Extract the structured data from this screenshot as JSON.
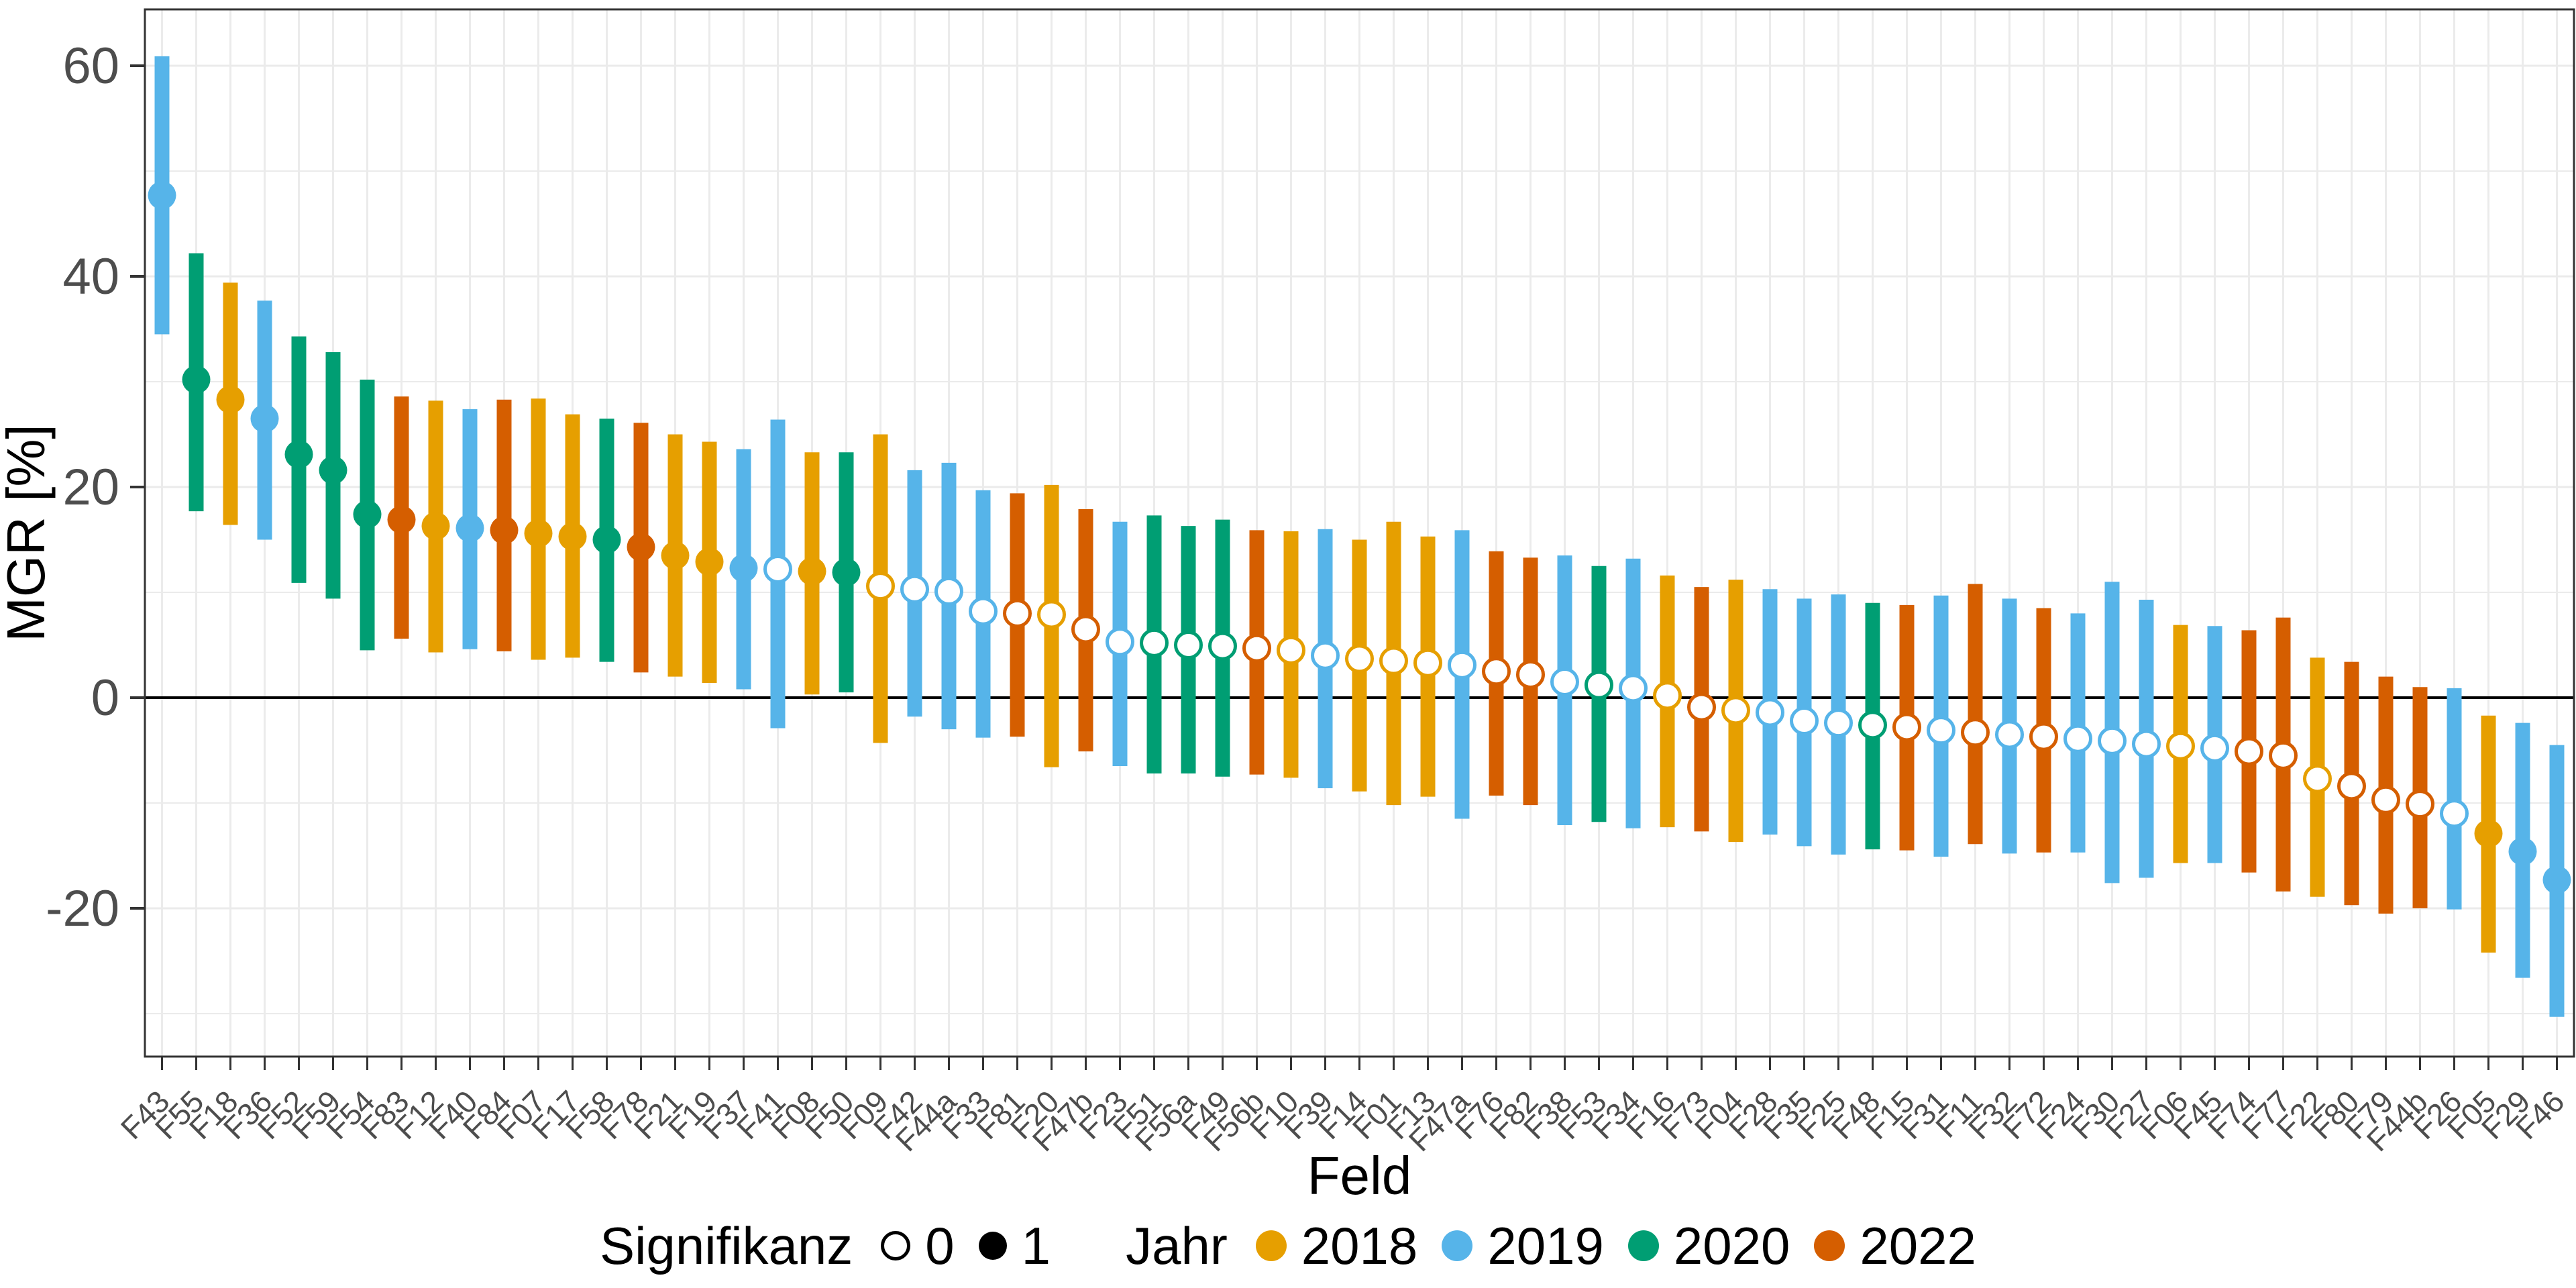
{
  "chart_data": {
    "type": "pointrange",
    "title": "",
    "xlabel": "Feld",
    "ylabel": "MGR [%]",
    "y_ticks": [
      60,
      40,
      20,
      0,
      -20
    ],
    "y_minor_gridlines": [
      50,
      30,
      10,
      -10,
      -30
    ],
    "ylim": [
      -34.1,
      65.4
    ],
    "zero_line": 0,
    "grid": "on",
    "legend_position": "bottom",
    "year_colors": {
      "2018": "#E69F00",
      "2019": "#56B4E9",
      "2020": "#009E73",
      "2022": "#D55E00"
    },
    "points": [
      {
        "feld": "F43",
        "jahr": "2019",
        "mgr": 47.7,
        "lo": 34.5,
        "hi": 60.9,
        "sig": 1
      },
      {
        "feld": "F55",
        "jahr": "2020",
        "mgr": 30.2,
        "lo": 17.7,
        "hi": 42.2,
        "sig": 1
      },
      {
        "feld": "F18",
        "jahr": "2018",
        "mgr": 28.3,
        "lo": 16.4,
        "hi": 39.4,
        "sig": 1
      },
      {
        "feld": "F36",
        "jahr": "2019",
        "mgr": 26.5,
        "lo": 15.0,
        "hi": 37.7,
        "sig": 1
      },
      {
        "feld": "F52",
        "jahr": "2020",
        "mgr": 23.1,
        "lo": 10.9,
        "hi": 34.3,
        "sig": 1
      },
      {
        "feld": "F59",
        "jahr": "2020",
        "mgr": 21.6,
        "lo": 9.4,
        "hi": 32.8,
        "sig": 1
      },
      {
        "feld": "F54",
        "jahr": "2020",
        "mgr": 17.4,
        "lo": 4.5,
        "hi": 30.2,
        "sig": 1
      },
      {
        "feld": "F83",
        "jahr": "2022",
        "mgr": 16.9,
        "lo": 5.6,
        "hi": 28.6,
        "sig": 1
      },
      {
        "feld": "F12",
        "jahr": "2018",
        "mgr": 16.3,
        "lo": 4.3,
        "hi": 28.2,
        "sig": 1
      },
      {
        "feld": "F40",
        "jahr": "2019",
        "mgr": 16.1,
        "lo": 4.6,
        "hi": 27.4,
        "sig": 1
      },
      {
        "feld": "F84",
        "jahr": "2022",
        "mgr": 15.9,
        "lo": 4.4,
        "hi": 28.3,
        "sig": 1
      },
      {
        "feld": "F07",
        "jahr": "2018",
        "mgr": 15.6,
        "lo": 3.6,
        "hi": 28.4,
        "sig": 1
      },
      {
        "feld": "F17",
        "jahr": "2018",
        "mgr": 15.3,
        "lo": 3.8,
        "hi": 26.9,
        "sig": 1
      },
      {
        "feld": "F58",
        "jahr": "2020",
        "mgr": 15.0,
        "lo": 3.4,
        "hi": 26.5,
        "sig": 1
      },
      {
        "feld": "F78",
        "jahr": "2022",
        "mgr": 14.3,
        "lo": 2.4,
        "hi": 26.1,
        "sig": 1
      },
      {
        "feld": "F21",
        "jahr": "2018",
        "mgr": 13.5,
        "lo": 2.0,
        "hi": 25.0,
        "sig": 1
      },
      {
        "feld": "F19",
        "jahr": "2018",
        "mgr": 12.9,
        "lo": 1.4,
        "hi": 24.3,
        "sig": 1
      },
      {
        "feld": "F37",
        "jahr": "2019",
        "mgr": 12.3,
        "lo": 0.8,
        "hi": 23.6,
        "sig": 1
      },
      {
        "feld": "F41",
        "jahr": "2019",
        "mgr": 12.2,
        "lo": -2.9,
        "hi": 26.4,
        "sig": 0
      },
      {
        "feld": "F08",
        "jahr": "2018",
        "mgr": 12.0,
        "lo": 0.3,
        "hi": 23.3,
        "sig": 1
      },
      {
        "feld": "F50",
        "jahr": "2020",
        "mgr": 11.9,
        "lo": 0.5,
        "hi": 23.3,
        "sig": 1
      },
      {
        "feld": "F09",
        "jahr": "2018",
        "mgr": 10.6,
        "lo": -4.3,
        "hi": 25.0,
        "sig": 0
      },
      {
        "feld": "F42",
        "jahr": "2019",
        "mgr": 10.3,
        "lo": -1.8,
        "hi": 21.6,
        "sig": 0
      },
      {
        "feld": "F44a",
        "jahr": "2019",
        "mgr": 10.1,
        "lo": -3.0,
        "hi": 22.3,
        "sig": 0
      },
      {
        "feld": "F33",
        "jahr": "2019",
        "mgr": 8.2,
        "lo": -3.8,
        "hi": 19.7,
        "sig": 0
      },
      {
        "feld": "F81",
        "jahr": "2022",
        "mgr": 8.0,
        "lo": -3.7,
        "hi": 19.4,
        "sig": 0
      },
      {
        "feld": "F20",
        "jahr": "2018",
        "mgr": 7.9,
        "lo": -6.6,
        "hi": 20.2,
        "sig": 0
      },
      {
        "feld": "F47b",
        "jahr": "2022",
        "mgr": 6.5,
        "lo": -5.1,
        "hi": 17.9,
        "sig": 0
      },
      {
        "feld": "F23",
        "jahr": "2019",
        "mgr": 5.3,
        "lo": -6.5,
        "hi": 16.7,
        "sig": 0
      },
      {
        "feld": "F51",
        "jahr": "2020",
        "mgr": 5.2,
        "lo": -7.2,
        "hi": 17.3,
        "sig": 0
      },
      {
        "feld": "F56a",
        "jahr": "2020",
        "mgr": 5.0,
        "lo": -7.2,
        "hi": 16.3,
        "sig": 0
      },
      {
        "feld": "F49",
        "jahr": "2020",
        "mgr": 4.9,
        "lo": -7.5,
        "hi": 16.9,
        "sig": 0
      },
      {
        "feld": "F56b",
        "jahr": "2022",
        "mgr": 4.7,
        "lo": -7.3,
        "hi": 15.9,
        "sig": 0
      },
      {
        "feld": "F10",
        "jahr": "2018",
        "mgr": 4.5,
        "lo": -7.6,
        "hi": 15.8,
        "sig": 0
      },
      {
        "feld": "F39",
        "jahr": "2019",
        "mgr": 4.0,
        "lo": -8.6,
        "hi": 16.0,
        "sig": 0
      },
      {
        "feld": "F14",
        "jahr": "2018",
        "mgr": 3.7,
        "lo": -8.9,
        "hi": 15.0,
        "sig": 0
      },
      {
        "feld": "F01",
        "jahr": "2018",
        "mgr": 3.5,
        "lo": -10.2,
        "hi": 16.7,
        "sig": 0
      },
      {
        "feld": "F13",
        "jahr": "2018",
        "mgr": 3.3,
        "lo": -9.4,
        "hi": 15.3,
        "sig": 0
      },
      {
        "feld": "F47a",
        "jahr": "2019",
        "mgr": 3.1,
        "lo": -11.5,
        "hi": 15.9,
        "sig": 0
      },
      {
        "feld": "F76",
        "jahr": "2022",
        "mgr": 2.5,
        "lo": -9.3,
        "hi": 13.9,
        "sig": 0
      },
      {
        "feld": "F82",
        "jahr": "2022",
        "mgr": 2.2,
        "lo": -10.2,
        "hi": 13.3,
        "sig": 0
      },
      {
        "feld": "F38",
        "jahr": "2019",
        "mgr": 1.5,
        "lo": -12.1,
        "hi": 13.5,
        "sig": 0
      },
      {
        "feld": "F53",
        "jahr": "2020",
        "mgr": 1.2,
        "lo": -11.8,
        "hi": 12.5,
        "sig": 0
      },
      {
        "feld": "F34",
        "jahr": "2019",
        "mgr": 0.9,
        "lo": -12.4,
        "hi": 13.2,
        "sig": 0
      },
      {
        "feld": "F16",
        "jahr": "2018",
        "mgr": 0.2,
        "lo": -12.3,
        "hi": 11.6,
        "sig": 0
      },
      {
        "feld": "F73",
        "jahr": "2022",
        "mgr": -0.9,
        "lo": -12.7,
        "hi": 10.5,
        "sig": 0
      },
      {
        "feld": "F04",
        "jahr": "2018",
        "mgr": -1.2,
        "lo": -13.7,
        "hi": 11.2,
        "sig": 0
      },
      {
        "feld": "F28",
        "jahr": "2019",
        "mgr": -1.4,
        "lo": -13.0,
        "hi": 10.3,
        "sig": 0
      },
      {
        "feld": "F35",
        "jahr": "2019",
        "mgr": -2.2,
        "lo": -14.1,
        "hi": 9.4,
        "sig": 0
      },
      {
        "feld": "F25",
        "jahr": "2019",
        "mgr": -2.4,
        "lo": -14.9,
        "hi": 9.8,
        "sig": 0
      },
      {
        "feld": "F48",
        "jahr": "2020",
        "mgr": -2.6,
        "lo": -14.4,
        "hi": 9.0,
        "sig": 0
      },
      {
        "feld": "F15",
        "jahr": "2022",
        "mgr": -2.8,
        "lo": -14.5,
        "hi": 8.8,
        "sig": 0
      },
      {
        "feld": "F31",
        "jahr": "2019",
        "mgr": -3.1,
        "lo": -15.1,
        "hi": 9.7,
        "sig": 0
      },
      {
        "feld": "F11",
        "jahr": "2022",
        "mgr": -3.3,
        "lo": -13.9,
        "hi": 10.8,
        "sig": 0
      },
      {
        "feld": "F32",
        "jahr": "2019",
        "mgr": -3.5,
        "lo": -14.8,
        "hi": 9.4,
        "sig": 0
      },
      {
        "feld": "F72",
        "jahr": "2022",
        "mgr": -3.7,
        "lo": -14.7,
        "hi": 8.5,
        "sig": 0
      },
      {
        "feld": "F24",
        "jahr": "2019",
        "mgr": -3.9,
        "lo": -14.7,
        "hi": 8.0,
        "sig": 0
      },
      {
        "feld": "F30",
        "jahr": "2019",
        "mgr": -4.1,
        "lo": -17.6,
        "hi": 11.0,
        "sig": 0
      },
      {
        "feld": "F27",
        "jahr": "2019",
        "mgr": -4.4,
        "lo": -17.1,
        "hi": 9.3,
        "sig": 0
      },
      {
        "feld": "F06",
        "jahr": "2018",
        "mgr": -4.6,
        "lo": -15.7,
        "hi": 6.9,
        "sig": 0
      },
      {
        "feld": "F45",
        "jahr": "2019",
        "mgr": -4.8,
        "lo": -15.7,
        "hi": 6.8,
        "sig": 0
      },
      {
        "feld": "F74",
        "jahr": "2022",
        "mgr": -5.1,
        "lo": -16.6,
        "hi": 6.4,
        "sig": 0
      },
      {
        "feld": "F77",
        "jahr": "2022",
        "mgr": -5.5,
        "lo": -18.4,
        "hi": 7.6,
        "sig": 0
      },
      {
        "feld": "F22",
        "jahr": "2018",
        "mgr": -7.7,
        "lo": -18.9,
        "hi": 3.8,
        "sig": 0
      },
      {
        "feld": "F80",
        "jahr": "2022",
        "mgr": -8.4,
        "lo": -19.7,
        "hi": 3.4,
        "sig": 0
      },
      {
        "feld": "F79",
        "jahr": "2022",
        "mgr": -9.7,
        "lo": -20.5,
        "hi": 2.0,
        "sig": 0
      },
      {
        "feld": "F44b",
        "jahr": "2022",
        "mgr": -10.1,
        "lo": -20.0,
        "hi": 1.0,
        "sig": 0
      },
      {
        "feld": "F26",
        "jahr": "2019",
        "mgr": -11.0,
        "lo": -20.1,
        "hi": 0.9,
        "sig": 0
      },
      {
        "feld": "F05",
        "jahr": "2018",
        "mgr": -12.9,
        "lo": -24.2,
        "hi": -1.7,
        "sig": 1
      },
      {
        "feld": "F29",
        "jahr": "2019",
        "mgr": -14.6,
        "lo": -26.6,
        "hi": -2.4,
        "sig": 1
      },
      {
        "feld": "F46",
        "jahr": "2019",
        "mgr": -17.3,
        "lo": -30.3,
        "hi": -4.5,
        "sig": 1
      }
    ]
  },
  "legend": {
    "groups": [
      {
        "title": "Signifikanz",
        "items": [
          {
            "label": "0",
            "symbol": "open-circle",
            "color": "#000000"
          },
          {
            "label": "1",
            "symbol": "filled-circle",
            "color": "#000000"
          }
        ]
      },
      {
        "title": "Jahr",
        "items": [
          {
            "label": "2018",
            "symbol": "year-dot",
            "color": "#E69F00"
          },
          {
            "label": "2019",
            "symbol": "year-dot",
            "color": "#56B4E9"
          },
          {
            "label": "2020",
            "symbol": "year-dot",
            "color": "#009E73"
          },
          {
            "label": "2022",
            "symbol": "year-dot",
            "color": "#D55E00"
          }
        ]
      }
    ]
  },
  "style_colors": {
    "grid": "#EBEBEB",
    "axis_text": "#4D4D4D",
    "panel_border": "#333333",
    "zero_line": "#000000"
  }
}
